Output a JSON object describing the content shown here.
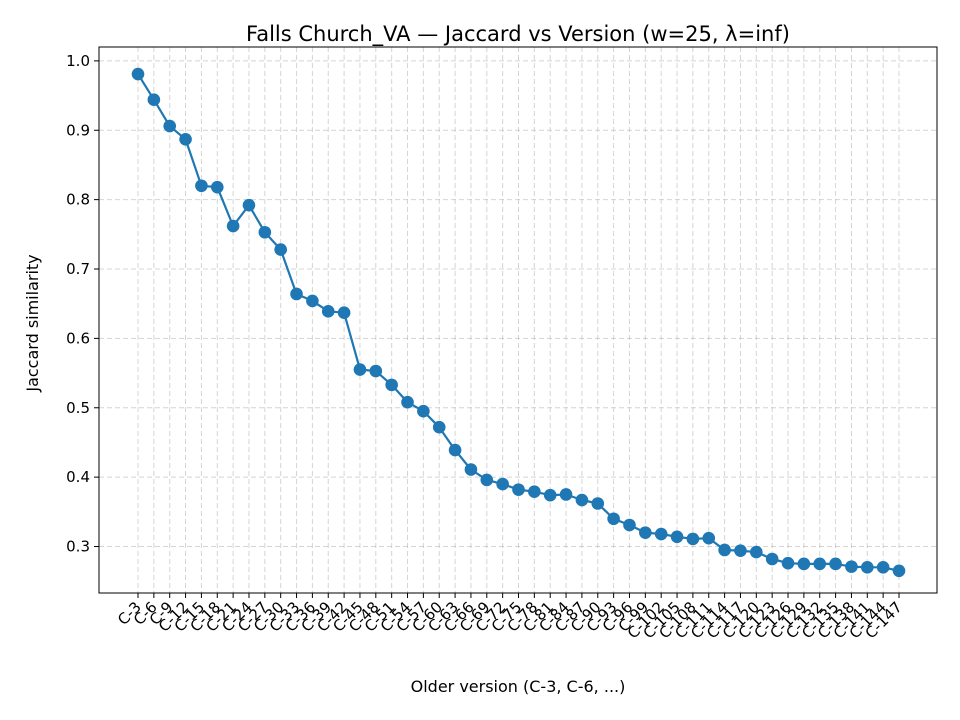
{
  "chart_data": {
    "type": "line",
    "title": "Falls Church_VA — Jaccard vs Version (w=25, λ=inf)",
    "xlabel": "Older version (C-3, C-6, ...)",
    "ylabel": "Jaccard similarity",
    "ylim": [
      0.233,
      1.02
    ],
    "yticks": [
      0.3,
      0.4,
      0.5,
      0.6,
      0.7,
      0.8,
      0.9,
      1.0
    ],
    "ytick_labels": [
      "0.3",
      "0.4",
      "0.5",
      "0.6",
      "0.7",
      "0.8",
      "0.9",
      "1.0"
    ],
    "grid": true,
    "line_color": "#1f77b4",
    "categories": [
      "C-3",
      "C-6",
      "C-9",
      "C-12",
      "C-15",
      "C-18",
      "C-21",
      "C-24",
      "C-27",
      "C-30",
      "C-33",
      "C-36",
      "C-39",
      "C-42",
      "C-45",
      "C-48",
      "C-51",
      "C-54",
      "C-57",
      "C-60",
      "C-63",
      "C-66",
      "C-69",
      "C-72",
      "C-75",
      "C-78",
      "C-81",
      "C-84",
      "C-87",
      "C-90",
      "C-93",
      "C-96",
      "C-99",
      "C-102",
      "C-105",
      "C-108",
      "C-111",
      "C-114",
      "C-117",
      "C-120",
      "C-123",
      "C-126",
      "C-129",
      "C-132",
      "C-135",
      "C-138",
      "C-141",
      "C-144",
      "C-147"
    ],
    "values": [
      0.981,
      0.944,
      0.906,
      0.887,
      0.82,
      0.818,
      0.762,
      0.792,
      0.753,
      0.728,
      0.664,
      0.654,
      0.639,
      0.637,
      0.555,
      0.553,
      0.533,
      0.508,
      0.495,
      0.472,
      0.439,
      0.411,
      0.396,
      0.39,
      0.382,
      0.379,
      0.374,
      0.375,
      0.367,
      0.362,
      0.34,
      0.331,
      0.32,
      0.318,
      0.314,
      0.311,
      0.312,
      0.295,
      0.294,
      0.292,
      0.282,
      0.276,
      0.275,
      0.275,
      0.275,
      0.271,
      0.27,
      0.27,
      0.265
    ]
  }
}
